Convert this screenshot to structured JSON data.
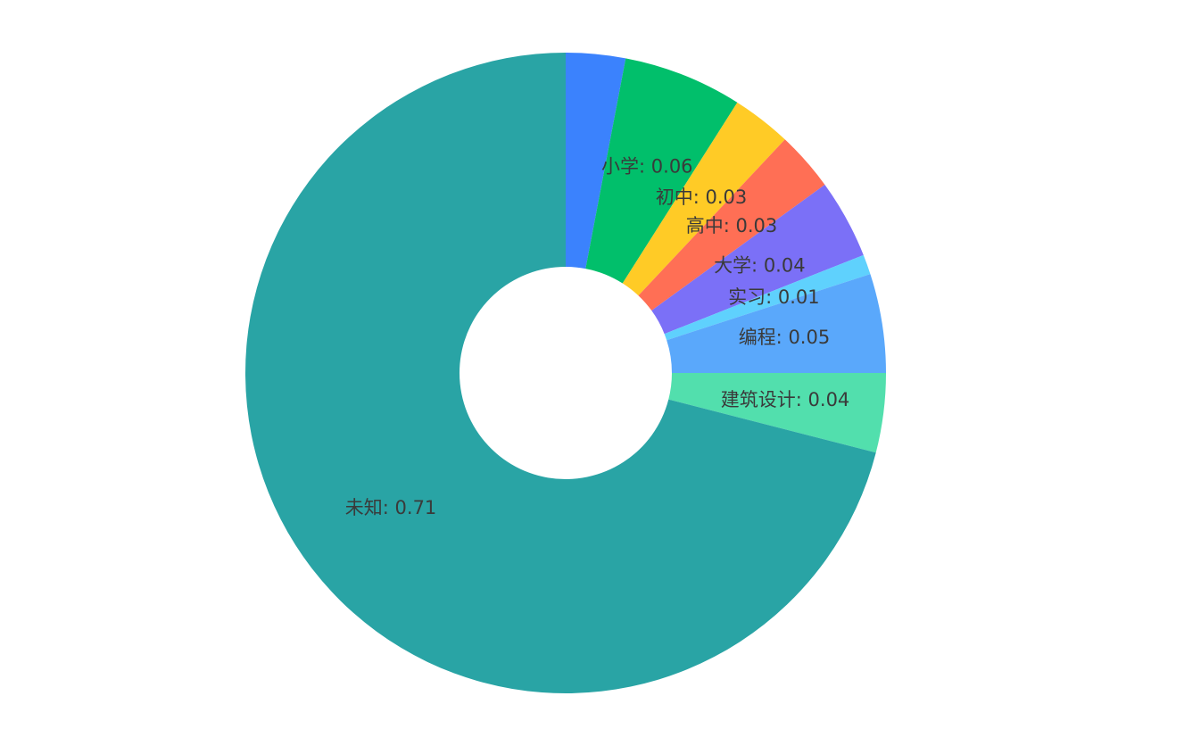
{
  "chart_data": {
    "type": "pie",
    "donut": true,
    "title": "",
    "slices": [
      {
        "label": "",
        "value": 0.03,
        "color": "#3b82fd",
        "display": ""
      },
      {
        "label": "小学",
        "value": 0.06,
        "color": "#01bf6b",
        "display": "小学: 0.06"
      },
      {
        "label": "初中",
        "value": 0.03,
        "color": "#ffcb26",
        "display": "初中: 0.03"
      },
      {
        "label": "高中",
        "value": 0.03,
        "color": "#ff6f55",
        "display": "高中: 0.03"
      },
      {
        "label": "大学",
        "value": 0.04,
        "color": "#7b70f7",
        "display": "大学: 0.04"
      },
      {
        "label": "实习",
        "value": 0.01,
        "color": "#5fd1fd",
        "display": "实习: 0.01"
      },
      {
        "label": "编程",
        "value": 0.05,
        "color": "#5aa8fb",
        "display": "编程: 0.05"
      },
      {
        "label": "建筑设计",
        "value": 0.04,
        "color": "#52dfad",
        "display": "建筑设计: 0.04"
      },
      {
        "label": "未知",
        "value": 0.71,
        "color": "#29a4a5",
        "display": "未知: 0.71"
      }
    ],
    "start_angle": "top",
    "direction": "clockwise",
    "legend": "none",
    "label_color": "#3a3a3a"
  }
}
